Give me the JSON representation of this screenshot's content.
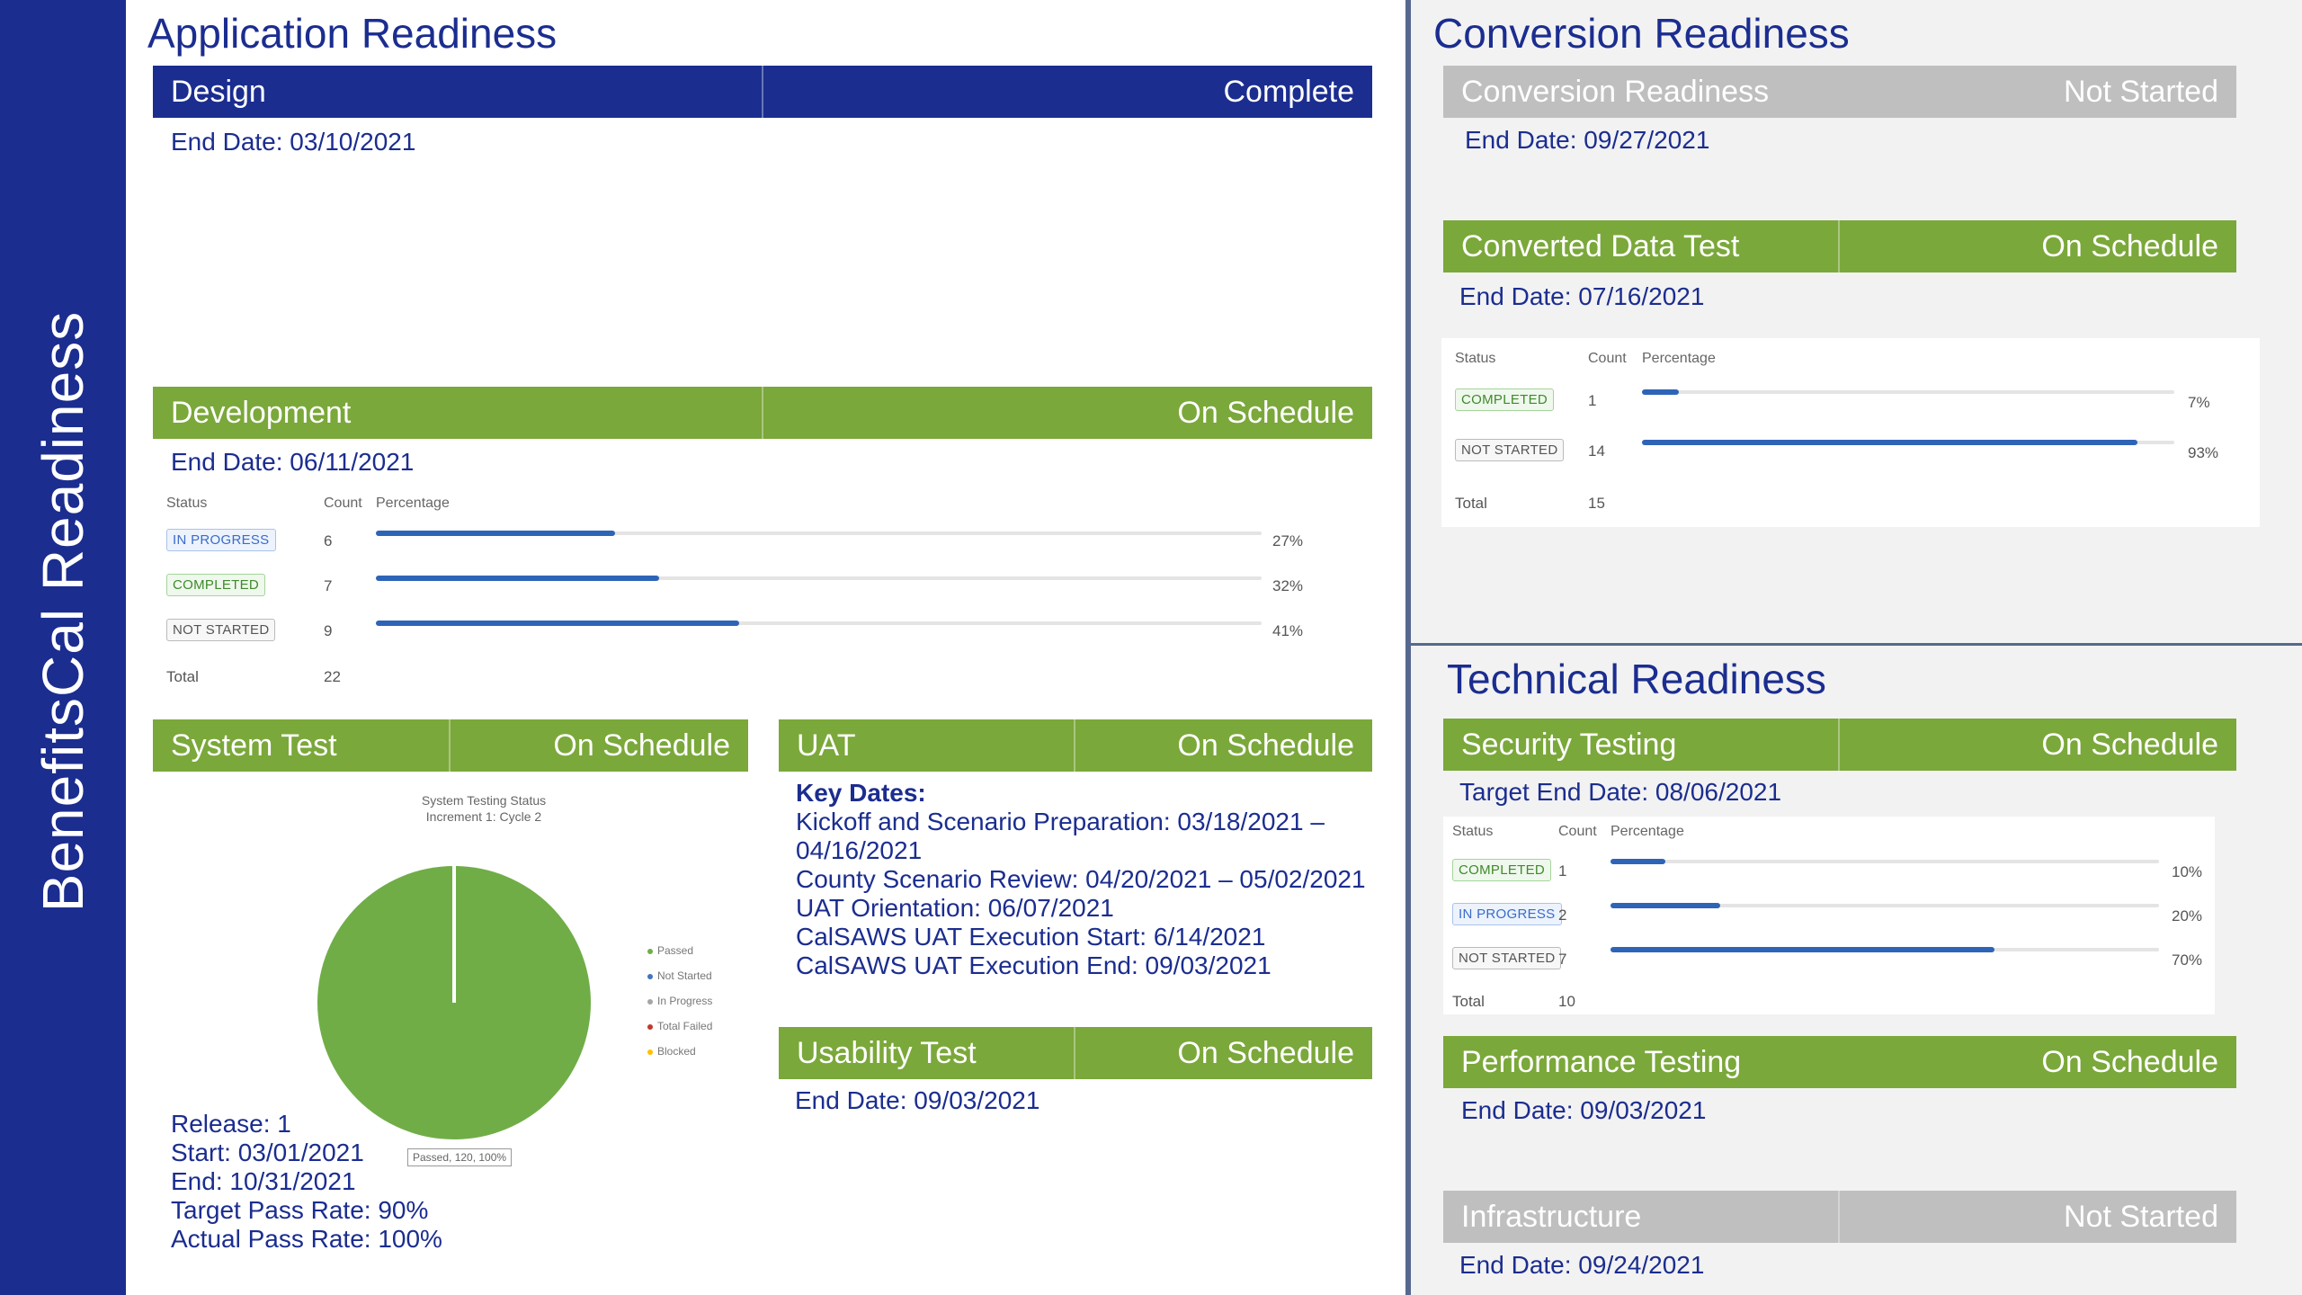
{
  "sidebar": {
    "title": "BenefitsCal Readiness"
  },
  "colors": {
    "navy": "#1b2d8f",
    "green": "#7ba83a",
    "grey": "#bfbfbf",
    "progress": "#2e64b7"
  },
  "application": {
    "title": "Application Readiness",
    "design": {
      "name": "Design",
      "status": "Complete",
      "end": "End Date: 03/10/2021"
    },
    "development": {
      "name": "Development",
      "status": "On Schedule",
      "end": "End Date: 06/11/2021",
      "table": {
        "headers": [
          "Status",
          "Count",
          "Percentage"
        ],
        "rows": [
          {
            "status": "IN PROGRESS",
            "count": "6",
            "percent": 0.27,
            "percent_label": "27%"
          },
          {
            "status": "COMPLETED",
            "count": "7",
            "percent": 0.32,
            "percent_label": "32%"
          },
          {
            "status": "NOT STARTED",
            "count": "9",
            "percent": 0.41,
            "percent_label": "41%"
          }
        ],
        "total_label": "Total",
        "total": "22"
      }
    },
    "system_test": {
      "name": "System Test",
      "status": "On Schedule",
      "chart_title": "System Testing Status",
      "chart_subtitle": "Increment 1: Cycle 2",
      "release": "Release: 1",
      "start": "Start: 03/01/2021",
      "end": "End: 10/31/2021",
      "target": "Target Pass Rate: 90%",
      "actual": "Actual Pass Rate: 100%"
    },
    "uat": {
      "name": "UAT",
      "status": "On Schedule",
      "key_dates_label": "Key Dates:",
      "lines": [
        "Kickoff and Scenario Preparation:  03/18/2021 –",
        "04/16/2021",
        "County Scenario Review: 04/20/2021 – 05/02/2021",
        "UAT Orientation: 06/07/2021",
        "CalSAWS UAT Execution Start: 6/14/2021",
        "CalSAWS UAT Execution End:  09/03/2021"
      ]
    },
    "usability": {
      "name": "Usability Test",
      "status": "On Schedule",
      "end": "End Date: 09/03/2021"
    }
  },
  "conversion": {
    "title": "Conversion Readiness",
    "conversion_item": {
      "name": "Conversion Readiness",
      "status": "Not Started",
      "end": "End Date: 09/27/2021"
    },
    "converted_data": {
      "name": "Converted Data Test",
      "status": "On Schedule",
      "end": "End Date: 07/16/2021",
      "table": {
        "headers": [
          "Status",
          "Count",
          "Percentage"
        ],
        "rows": [
          {
            "status": "COMPLETED",
            "count": "1",
            "percent": 0.07,
            "percent_label": "7%"
          },
          {
            "status": "NOT STARTED",
            "count": "14",
            "percent": 0.93,
            "percent_label": "93%"
          }
        ],
        "total_label": "Total",
        "total": "15"
      }
    }
  },
  "technical": {
    "title": "Technical Readiness",
    "security": {
      "name": "Security Testing",
      "status": "On Schedule",
      "end": "Target End Date: 08/06/2021",
      "table": {
        "headers": [
          "Status",
          "Count",
          "Percentage"
        ],
        "rows": [
          {
            "status": "COMPLETED",
            "count": "1",
            "percent": 0.1,
            "percent_label": "10%"
          },
          {
            "status": "IN PROGRESS",
            "count": "2",
            "percent": 0.2,
            "percent_label": "20%"
          },
          {
            "status": "NOT STARTED",
            "count": "7",
            "percent": 0.7,
            "percent_label": "70%"
          }
        ],
        "total_label": "Total",
        "total": "10"
      }
    },
    "performance": {
      "name": "Performance Testing",
      "status": "On Schedule",
      "end": "End Date: 09/03/2021"
    },
    "infrastructure": {
      "name": "Infrastructure",
      "status": "Not Started",
      "end": "End Date: 09/24/2021"
    }
  },
  "chart_data": {
    "type": "pie",
    "title": "System Testing Status",
    "subtitle": "Increment 1: Cycle 2",
    "categories": [
      "Passed",
      "Not Started",
      "In Progress",
      "Total Failed",
      "Blocked"
    ],
    "values": [
      120,
      0,
      0,
      0,
      0
    ],
    "colors": [
      "#70ad47",
      "#4472c4",
      "#a5a5a5",
      "#c0392b",
      "#ffc000"
    ],
    "data_labels": [
      "Passed, 120, 100%"
    ],
    "legend": "right"
  }
}
